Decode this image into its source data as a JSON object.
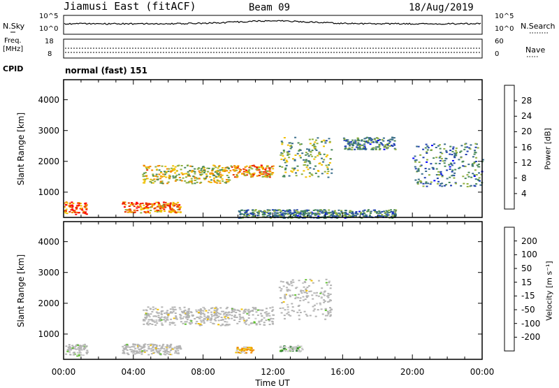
{
  "header": {
    "station": "Jiamusi East (fitACF)",
    "beam": "Beam 09",
    "date": "18/Aug/2019"
  },
  "nsky_panel": {
    "left_label": "N.Sky",
    "right_label": "N.Search",
    "y_top_tick": "10^5",
    "y_bottom_tick": "10^0",
    "right_top_tick": "10^5",
    "right_bottom_tick": "10^0"
  },
  "freq_panel": {
    "left_label_line1": "Freq.",
    "left_label_line2": "[MHz]",
    "left_top_tick": "18",
    "left_bottom_tick": "8",
    "right_label": "Nave",
    "right_top_tick": "60",
    "right_bottom_tick": "0"
  },
  "cpid": {
    "label": "CPID",
    "value": "normal (fast) 151"
  },
  "colors": {
    "power_scale": [
      "#0000ff",
      "#2040b0",
      "#3a6e8c",
      "#4a8a5a",
      "#90b040",
      "#f0c000",
      "#f08a00",
      "#e83000",
      "#ff0000"
    ],
    "velocity_scale": [
      "#0000ff",
      "#2030a0",
      "#2e7d32",
      "#60c030",
      "#c8c8c8",
      "#c8c8c8",
      "#f0c000",
      "#f08a00",
      "#e83000",
      "#ff0000"
    ],
    "ground_scatter": "#b4b4b4"
  },
  "chart_data": [
    {
      "type": "heatmap",
      "panel": "power",
      "ylabel": "Slant Range [km]",
      "ylim": [
        180,
        4650
      ],
      "yticks": [
        "1000",
        "2000",
        "3000",
        "4000"
      ],
      "xlim": [
        "00:00",
        "24:00"
      ],
      "colorbar": {
        "label": "Power [dB]",
        "range": [
          0,
          32
        ],
        "ticks": [
          "4",
          "8",
          "12",
          "16",
          "20",
          "24",
          "28"
        ]
      },
      "echo_regions": [
        {
          "t_start": "00:00",
          "t_end": "01:20",
          "range_start": 300,
          "range_end": 700,
          "power_db": 26
        },
        {
          "t_start": "03:20",
          "t_end": "06:40",
          "range_start": 350,
          "range_end": 700,
          "power_db": 24
        },
        {
          "t_start": "04:30",
          "t_end": "09:30",
          "range_start": 1300,
          "range_end": 1900,
          "power_db": 18
        },
        {
          "t_start": "09:30",
          "t_end": "12:00",
          "range_start": 1500,
          "range_end": 1900,
          "power_db": 22
        },
        {
          "t_start": "12:20",
          "t_end": "15:20",
          "range_start": 1500,
          "range_end": 2800,
          "power_db": 14
        },
        {
          "t_start": "16:00",
          "t_end": "19:00",
          "range_start": 2400,
          "range_end": 2800,
          "power_db": 10
        },
        {
          "t_start": "20:00",
          "t_end": "24:00",
          "range_start": 1200,
          "range_end": 2600,
          "power_db": 10
        },
        {
          "t_start": "10:00",
          "t_end": "19:00",
          "range_start": 180,
          "range_end": 450,
          "power_db": 10
        }
      ]
    },
    {
      "type": "heatmap",
      "panel": "velocity",
      "ylabel": "Slant Range [km]",
      "ylim": [
        180,
        4650
      ],
      "yticks": [
        "1000",
        "2000",
        "3000",
        "4000"
      ],
      "xlim": [
        "00:00",
        "24:00"
      ],
      "xticks": [
        "00:00",
        "04:00",
        "08:00",
        "12:00",
        "16:00",
        "20:00",
        "00:00"
      ],
      "xlabel": "Time UT",
      "colorbar": {
        "label": "Velocity [m s⁻¹]",
        "range": [
          -250,
          250
        ],
        "ticks": [
          "200",
          "100",
          "50",
          "15",
          "-15",
          "-50",
          "-100",
          "-200"
        ]
      },
      "echo_regions": [
        {
          "t_start": "00:00",
          "t_end": "01:20",
          "range_start": 300,
          "range_end": 700,
          "velocity": 0
        },
        {
          "t_start": "03:20",
          "t_end": "06:40",
          "range_start": 350,
          "range_end": 700,
          "velocity": 0
        },
        {
          "t_start": "04:30",
          "t_end": "12:00",
          "range_start": 1300,
          "range_end": 1900,
          "velocity": 0
        },
        {
          "t_start": "12:20",
          "t_end": "15:20",
          "range_start": 1500,
          "range_end": 2800,
          "velocity": 0
        },
        {
          "t_start": "09:50",
          "t_end": "10:50",
          "range_start": 400,
          "range_end": 600,
          "velocity": -60
        },
        {
          "t_start": "12:20",
          "t_end": "13:40",
          "range_start": 450,
          "range_end": 650,
          "velocity": 40
        }
      ]
    }
  ]
}
